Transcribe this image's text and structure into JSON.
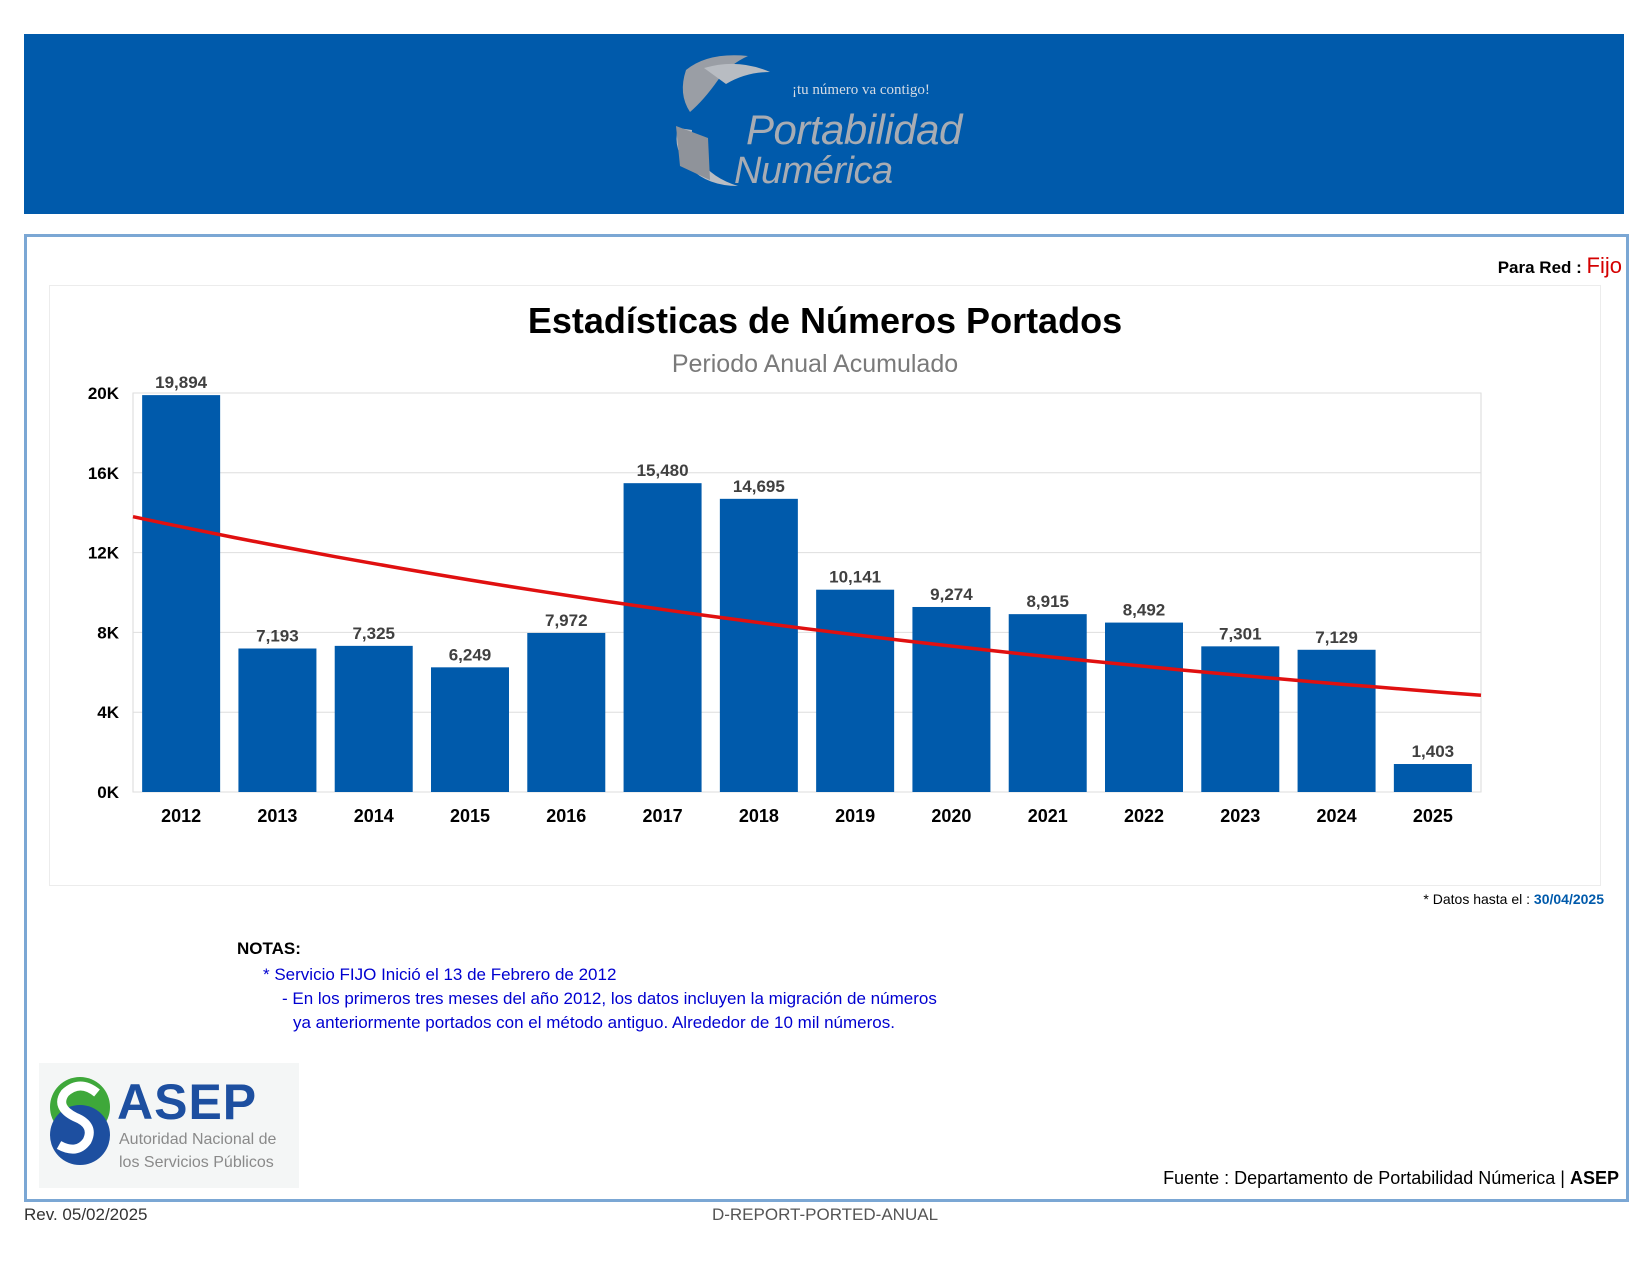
{
  "header": {
    "logo_slogan": "¡tu número va contigo!",
    "logo_word1": "Portabilidad",
    "logo_word2": "Numérica"
  },
  "network": {
    "label": "Para Red",
    "separator": ":",
    "value": "Fijo"
  },
  "chart_data": {
    "type": "bar",
    "title": "Estadísticas de Números Portados",
    "subtitle": "Periodo Anual Acumulado",
    "categories": [
      "2012",
      "2013",
      "2014",
      "2015",
      "2016",
      "2017",
      "2018",
      "2019",
      "2020",
      "2021",
      "2022",
      "2023",
      "2024",
      "2025"
    ],
    "series": [
      {
        "values": [
          19894,
          7193,
          7325,
          6249,
          7972,
          15480,
          14695,
          10141,
          9274,
          8915,
          8492,
          7301,
          7129,
          1403
        ],
        "data_labels": [
          "19,894",
          "7,193",
          "7,325",
          "6,249",
          "7,972",
          "15,480",
          "14,695",
          "10,141",
          "9,274",
          "8,915",
          "8,492",
          "7,301",
          "7,129",
          "1,403"
        ]
      }
    ],
    "trendline": {
      "type": "line",
      "start": 13800,
      "end": 4850
    },
    "ylim": [
      0,
      20000
    ],
    "yticks": [
      0,
      4000,
      8000,
      12000,
      16000,
      20000
    ],
    "ytick_labels": [
      "0K",
      "4K",
      "8K",
      "12K",
      "16K",
      "20K"
    ],
    "grid": true,
    "colors": {
      "bar": "#005aab",
      "trend": "#e01010"
    }
  },
  "data_note": {
    "label": "* Datos hasta el :",
    "date": "30/04/2025"
  },
  "notes": {
    "heading": "NOTAS:",
    "line1": "* Servicio FIJO Inició el 13 de Febrero de 2012",
    "line2": "- En los primeros tres meses del año 2012,  los datos incluyen la migración de números",
    "line3": "ya anteriormente portados con el método antiguo. Alrededor de 10 mil números."
  },
  "asep": {
    "name": "ASEP",
    "sub1": "Autoridad Nacional de",
    "sub2": "los Servicios Públicos"
  },
  "footer": {
    "fuente_label": "Fuente : Departamento de Portabilidad Númerica |",
    "fuente_org": "ASEP",
    "revision": "Rev. 05/02/2025",
    "doc_id": "D-REPORT-PORTED-ANUAL"
  }
}
